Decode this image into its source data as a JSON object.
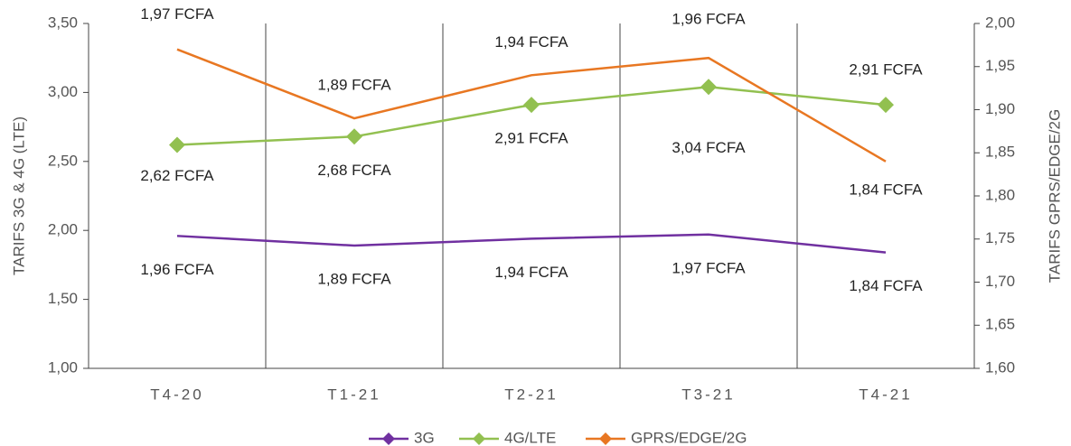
{
  "chart_data": {
    "type": "line",
    "categories": [
      "T4-20",
      "T1-21",
      "T2-21",
      "T3-21",
      "T4-21"
    ],
    "ylabel": "TARIFS 3G & 4G (LTE)",
    "y2label": "TARIFS GPRS/EDGE/2G",
    "ylim": [
      1.0,
      3.5
    ],
    "yticks": [
      {
        "value": 1.0,
        "label": "1,00"
      },
      {
        "value": 1.5,
        "label": "1,50"
      },
      {
        "value": 2.0,
        "label": "2,00"
      },
      {
        "value": 2.5,
        "label": "2,50"
      },
      {
        "value": 3.0,
        "label": "3,00"
      },
      {
        "value": 3.5,
        "label": "3,50"
      }
    ],
    "y2lim": [
      1.6,
      2.0
    ],
    "y2ticks": [
      {
        "value": 1.6,
        "label": "1,60"
      },
      {
        "value": 1.65,
        "label": "1,65"
      },
      {
        "value": 1.7,
        "label": "1,70"
      },
      {
        "value": 1.75,
        "label": "1,75"
      },
      {
        "value": 1.8,
        "label": "1,80"
      },
      {
        "value": 1.85,
        "label": "1,85"
      },
      {
        "value": 1.9,
        "label": "1,90"
      },
      {
        "value": 1.95,
        "label": "1,95"
      },
      {
        "value": 2.0,
        "label": "2,00"
      }
    ],
    "legend": "bottom",
    "series": [
      {
        "name": "3G",
        "color": "#7030a0",
        "values": [
          1.96,
          1.89,
          1.94,
          1.97,
          1.84
        ],
        "value_labels": [
          "1,96 FCFA",
          "1,89 FCFA",
          "1,94 FCFA",
          "1,97 FCFA",
          "1,84 FCFA"
        ],
        "markers": false
      },
      {
        "name": "4G/LTE",
        "color": "#92c050",
        "values": [
          2.62,
          2.68,
          2.91,
          3.04,
          2.91
        ],
        "value_labels": [
          "2,62 FCFA",
          "2,68 FCFA",
          "2,91 FCFA",
          "3,04 FCFA",
          "2,91 FCFA"
        ],
        "markers": true
      },
      {
        "name": "GPRS/EDGE/2G",
        "color": "#e87722",
        "axis": "y2",
        "values": [
          1.97,
          1.89,
          1.94,
          1.96,
          1.84
        ],
        "value_labels": [
          "1,97 FCFA",
          "1,89 FCFA",
          "1,94 FCFA",
          "1,96 FCFA",
          "1,84 FCFA"
        ],
        "markers": false
      }
    ]
  }
}
